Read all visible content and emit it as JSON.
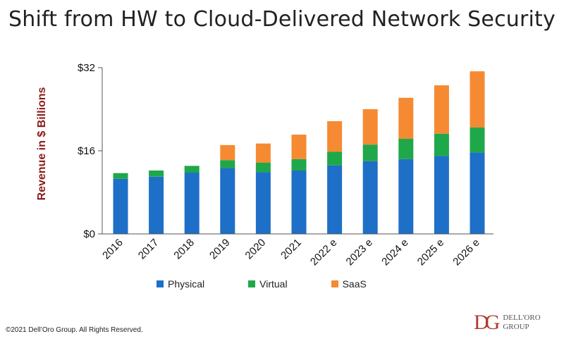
{
  "title": "Shift from HW to Cloud-Delivered Network Security",
  "copyright": "©2021 Dell’Oro Group.  All Rights Reserved.",
  "logo": {
    "mark": "DG",
    "line1": "DELL'ORO",
    "line2": "GROUP"
  },
  "colors": {
    "physical": "#1e6fc7",
    "virtual": "#1fa84a",
    "saas": "#f58a33",
    "axis": "#555555",
    "ylabel": "#8b1a1a"
  },
  "chart_data": {
    "type": "bar",
    "stacked": true,
    "title": "Shift from HW to Cloud-Delivered Network Security",
    "ylabel": "Revenue in $ Billions",
    "xlabel": "",
    "ylim": [
      0,
      32
    ],
    "yticks": [
      "$0",
      "$16",
      "$32"
    ],
    "ytick_values": [
      0,
      16,
      32
    ],
    "grid": false,
    "legend": "bottom",
    "categories": [
      "2016",
      "2017",
      "2018",
      "2019",
      "2020",
      "2021",
      "2022 e",
      "2023 e",
      "2024 e",
      "2025 e",
      "2026 e"
    ],
    "series": [
      {
        "name": "Physical",
        "values": [
          10.6,
          11.0,
          11.8,
          12.7,
          11.9,
          12.2,
          13.2,
          14.0,
          14.4,
          15.0,
          15.7
        ]
      },
      {
        "name": "Virtual",
        "values": [
          1.1,
          1.2,
          1.3,
          1.5,
          1.8,
          2.2,
          2.6,
          3.2,
          3.9,
          4.3,
          4.8
        ]
      },
      {
        "name": "SaaS",
        "values": [
          0,
          0,
          0,
          2.9,
          3.7,
          4.7,
          5.9,
          6.8,
          7.9,
          9.3,
          10.8
        ]
      }
    ]
  }
}
